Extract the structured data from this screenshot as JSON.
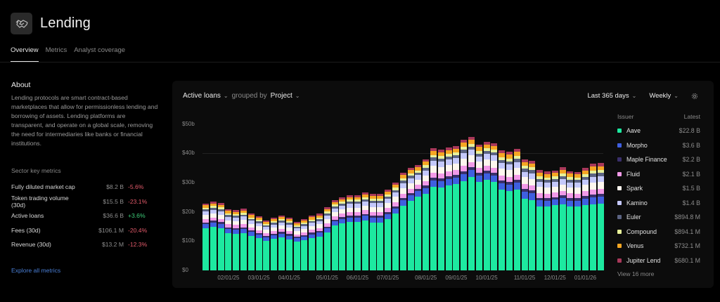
{
  "header": {
    "title": "Lending",
    "icon": "handshake-icon"
  },
  "tabs": [
    {
      "label": "Overview",
      "active": true
    },
    {
      "label": "Metrics",
      "active": false
    },
    {
      "label": "Analyst coverage",
      "active": false
    }
  ],
  "about": {
    "title": "About",
    "text": "Lending protocols are smart contract-based marketplaces that allow for permissionless lending and borrowing of assets. Lending platforms are transparent, and operate on a global scale, removing the need for intermediaries like banks or financial institutions."
  },
  "sector_metrics": {
    "title": "Sector key metrics",
    "rows": [
      {
        "label": "Fully diluted market cap",
        "value": "$8.2 B",
        "change": "-5.6%",
        "direction": "neg"
      },
      {
        "label": "Token trading volume (30d)",
        "value": "$15.5 B",
        "change": "-23.1%",
        "direction": "neg"
      },
      {
        "label": "Active loans",
        "value": "$36.6 B",
        "change": "+3.6%",
        "direction": "pos"
      },
      {
        "label": "Fees (30d)",
        "value": "$106.1 M",
        "change": "-20.4%",
        "direction": "neg"
      },
      {
        "label": "Revenue (30d)",
        "value": "$13.2 M",
        "change": "-12.3%",
        "direction": "neg"
      }
    ],
    "explore_link": "Explore all metrics"
  },
  "chart_controls": {
    "metric": "Active loans",
    "grouped_by_label": "grouped by",
    "group": "Project",
    "range": "Last 365 days",
    "interval": "Weekly"
  },
  "legend": {
    "issuer_header": "Issuer",
    "latest_header": "Latest",
    "items": [
      {
        "name": "Aave",
        "value": "$22.8 B",
        "color": "#1de9a0"
      },
      {
        "name": "Morpho",
        "value": "$3.6 B",
        "color": "#3f5fe0"
      },
      {
        "name": "Maple Finance",
        "value": "$2.2 B",
        "color": "#3a2f6b"
      },
      {
        "name": "Fluid",
        "value": "$2.1 B",
        "color": "#f29ae8"
      },
      {
        "name": "Spark",
        "value": "$1.5 B",
        "color": "#fdf6ee"
      },
      {
        "name": "Kamino",
        "value": "$1.4 B",
        "color": "#c4c8fb"
      },
      {
        "name": "Euler",
        "value": "$894.8 M",
        "color": "#5b6382"
      },
      {
        "name": "Compound",
        "value": "$894.1 M",
        "color": "#e8f29a"
      },
      {
        "name": "Venus",
        "value": "$732.1 M",
        "color": "#f5a623"
      },
      {
        "name": "Jupiter Lend",
        "value": "$680.1 M",
        "color": "#a8385a"
      }
    ],
    "view_more": "View 16 more"
  },
  "chart_data": {
    "type": "bar",
    "stacked": true,
    "title": "Active loans grouped by Project",
    "xlabel": "",
    "ylabel": "",
    "ylim": [
      0,
      50
    ],
    "y_unit": "$B",
    "y_ticks": [
      "$0",
      "$10b",
      "$20b",
      "$30b",
      "$40b",
      "$50b"
    ],
    "x_tick_labels": [
      "02/01/25",
      "03/01/25",
      "04/01/25",
      "05/01/25",
      "06/01/25",
      "07/01/25",
      "08/01/25",
      "09/01/25",
      "10/01/25",
      "11/01/25",
      "12/01/25",
      "01/01/26"
    ],
    "x_tick_bar_index": [
      3,
      7,
      11,
      16,
      20,
      24,
      29,
      33,
      37,
      42,
      46,
      50
    ],
    "totals": [
      22.8,
      23.5,
      23.0,
      20.9,
      20.6,
      21.1,
      19.4,
      18.5,
      17.0,
      18.0,
      18.7,
      18.0,
      16.5,
      17.5,
      18.7,
      19.4,
      21.6,
      24.0,
      24.9,
      25.7,
      25.7,
      26.6,
      26.1,
      26.1,
      27.6,
      30.0,
      33.3,
      35.0,
      36.0,
      37.9,
      41.7,
      41.2,
      42.0,
      42.5,
      44.6,
      45.5,
      43.0,
      43.9,
      43.5,
      41.0,
      40.5,
      41.5,
      38.0,
      37.5,
      34.3,
      33.8,
      34.1,
      35.2,
      33.9,
      33.7,
      35.0,
      36.4,
      36.6
    ],
    "aave": [
      14.4,
      14.9,
      14.4,
      12.7,
      12.5,
      12.7,
      11.8,
      11.0,
      10.1,
      10.8,
      11.3,
      10.6,
      9.8,
      10.3,
      11.0,
      11.5,
      12.9,
      15.3,
      16.1,
      16.5,
      16.5,
      17.0,
      16.3,
      16.3,
      17.5,
      19.4,
      22.1,
      23.7,
      25.2,
      26.1,
      28.5,
      28.3,
      29.0,
      29.5,
      30.5,
      31.9,
      30.2,
      30.9,
      30.2,
      27.5,
      27.0,
      27.5,
      24.5,
      24.0,
      21.8,
      21.8,
      22.2,
      22.5,
      21.8,
      21.8,
      22.3,
      22.6,
      22.8
    ],
    "other_share": {
      "Morpho": 0.17,
      "Maple Finance": 0.07,
      "Fluid": 0.13,
      "Spark": 0.17,
      "Kamino": 0.14,
      "Euler": 0.08,
      "Compound": 0.07,
      "Venus": 0.1,
      "Jupiter Lend": 0.07
    }
  }
}
